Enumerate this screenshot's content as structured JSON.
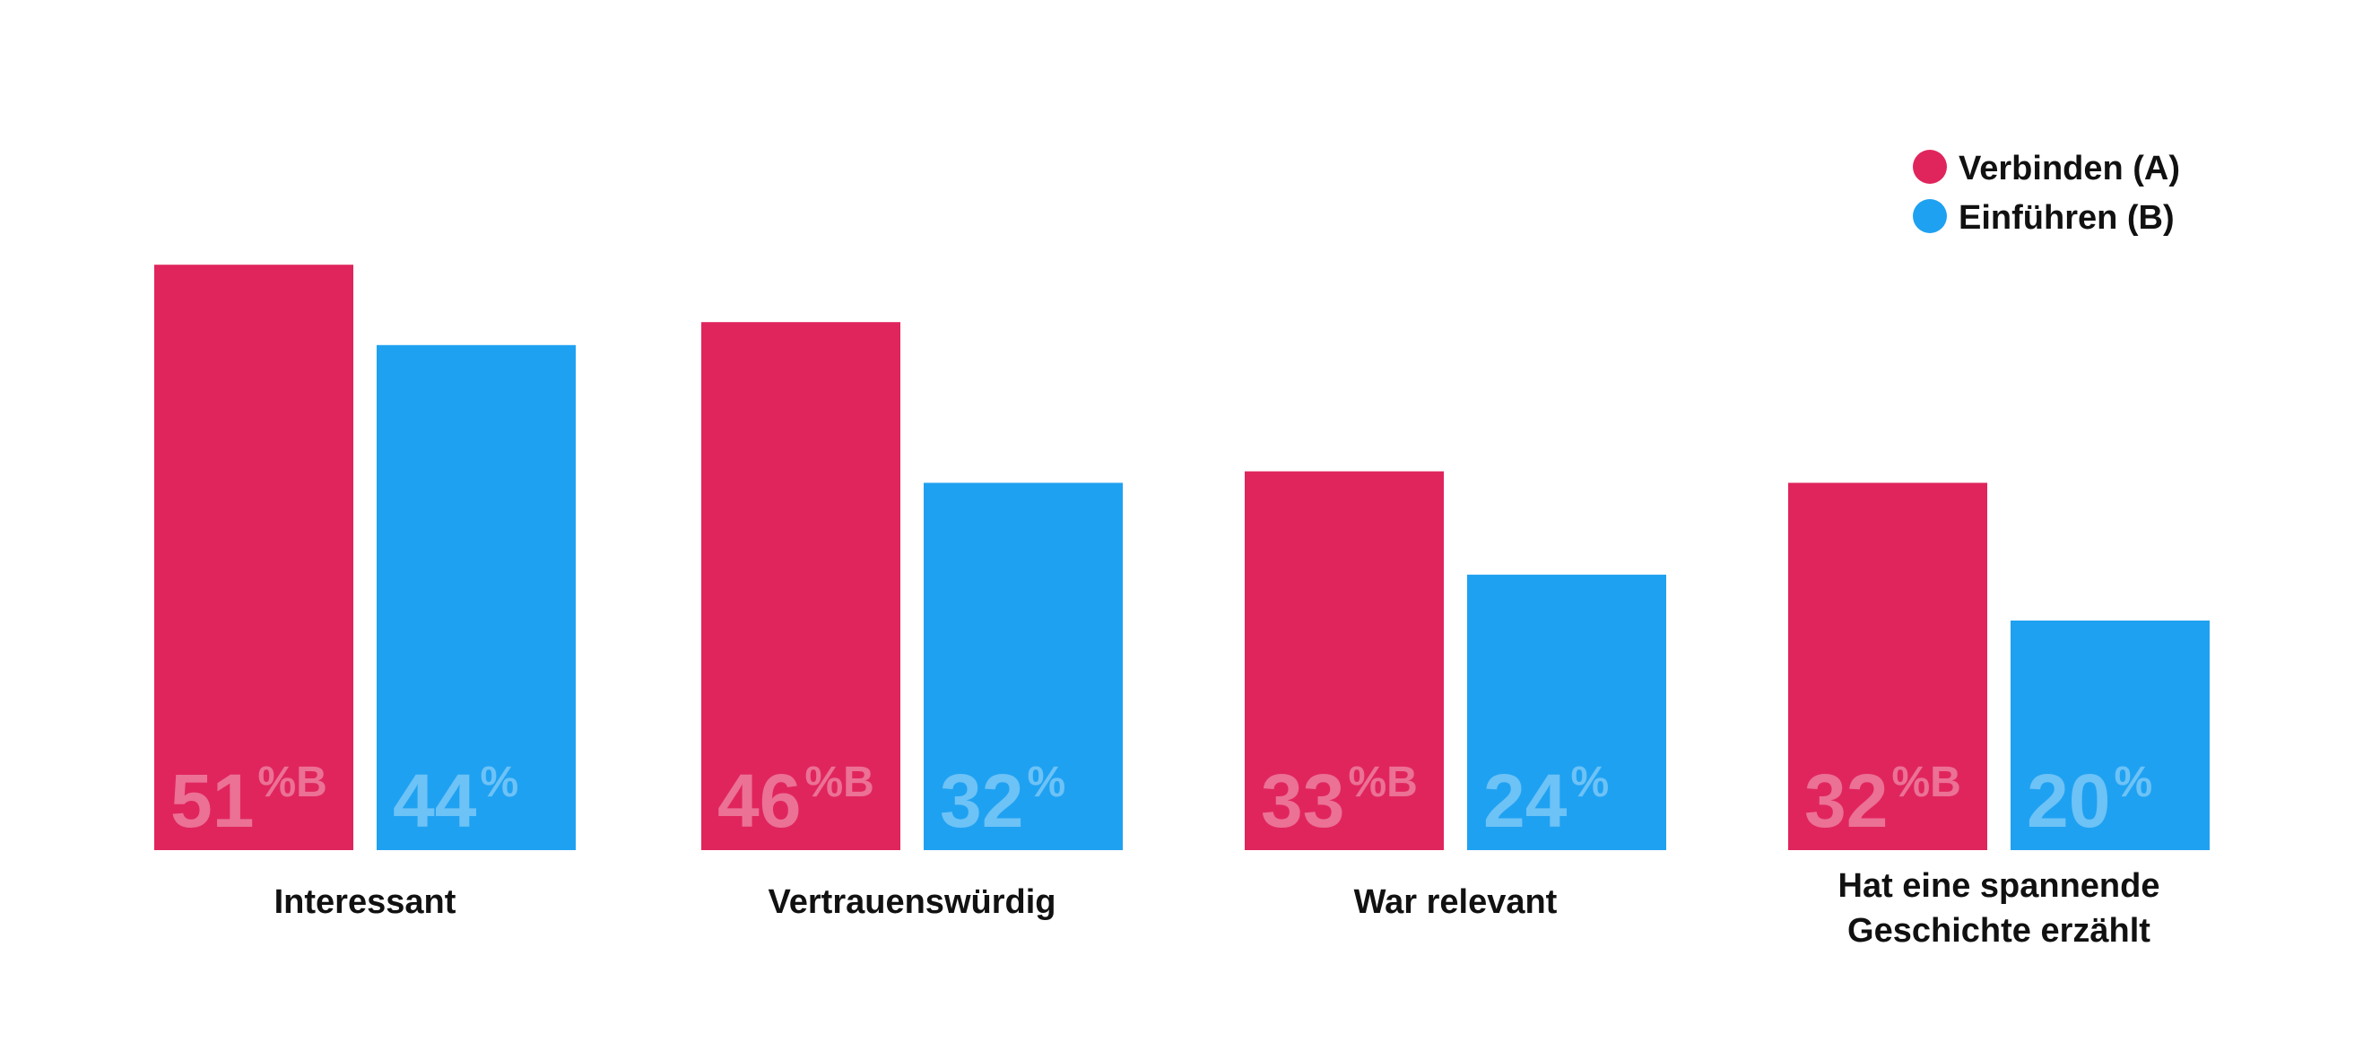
{
  "chart_data": {
    "type": "bar",
    "categories": [
      [
        "Interessant"
      ],
      [
        "Vertrauenswürdig"
      ],
      [
        "War relevant"
      ],
      [
        "Hat eine spannende",
        "Geschichte erzählt"
      ]
    ],
    "series": [
      {
        "name": "Verbinden (A)",
        "color": "#E0255D",
        "values": [
          51,
          46,
          33,
          32
        ],
        "labels": [
          "51",
          "46",
          "33",
          "32"
        ],
        "suffix": "%B"
      },
      {
        "name": "Einführen (B)",
        "color": "#1FA1F1",
        "values": [
          44,
          32,
          24,
          20
        ],
        "labels": [
          "44",
          "32",
          "24",
          "20"
        ],
        "suffix": "%"
      }
    ],
    "ylim": [
      0,
      60
    ],
    "grid": false,
    "legend_position": "top-right"
  }
}
